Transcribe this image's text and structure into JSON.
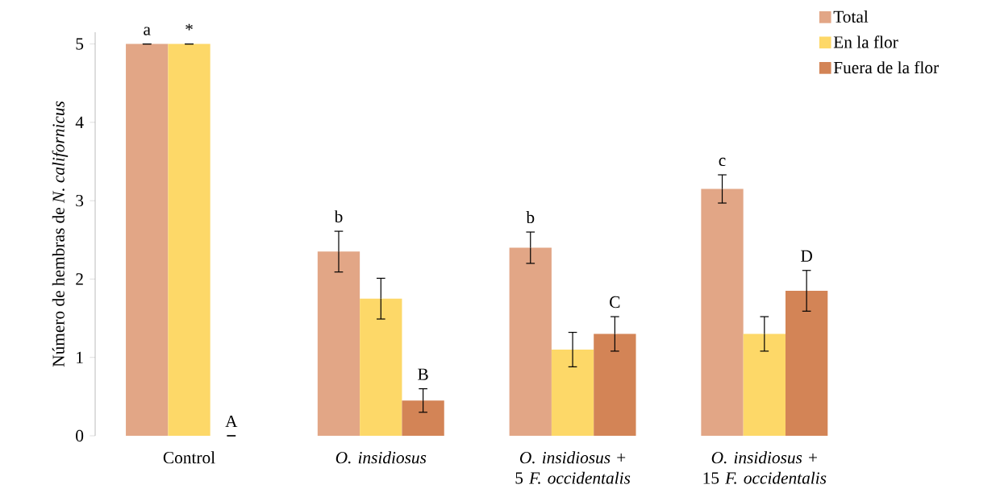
{
  "chart_data": {
    "type": "bar",
    "ylabel": "Número de hembras de *N. californicus*",
    "categories": [
      "Control",
      "*O. insidiosus*",
      "*O. insidiosus* + 5 *F. occidentalis*",
      "*O. insidiosus* + 15 *F. occidentalis*"
    ],
    "series": [
      {
        "name": "Total",
        "color": "#e2a686",
        "values": [
          5,
          2.35,
          2.4,
          3.15
        ],
        "errors": [
          0,
          0.26,
          0.2,
          0.18
        ]
      },
      {
        "name": "En la flor",
        "color": "#fdd868",
        "values": [
          5,
          1.75,
          1.1,
          1.3
        ],
        "errors": [
          0,
          0.26,
          0.22,
          0.22
        ]
      },
      {
        "name": "Fuera de la flor",
        "color": "#d38456",
        "values": [
          0,
          0.45,
          1.3,
          1.85
        ],
        "errors": [
          0,
          0.15,
          0.22,
          0.26
        ]
      }
    ],
    "ylim": [
      0,
      5.15
    ],
    "yticks": [
      0,
      1,
      2,
      3,
      4,
      5
    ],
    "legend": "top right",
    "annotations": [
      "a",
      "*",
      "A",
      "b",
      "B",
      "b",
      "C",
      "c",
      "D"
    ]
  }
}
